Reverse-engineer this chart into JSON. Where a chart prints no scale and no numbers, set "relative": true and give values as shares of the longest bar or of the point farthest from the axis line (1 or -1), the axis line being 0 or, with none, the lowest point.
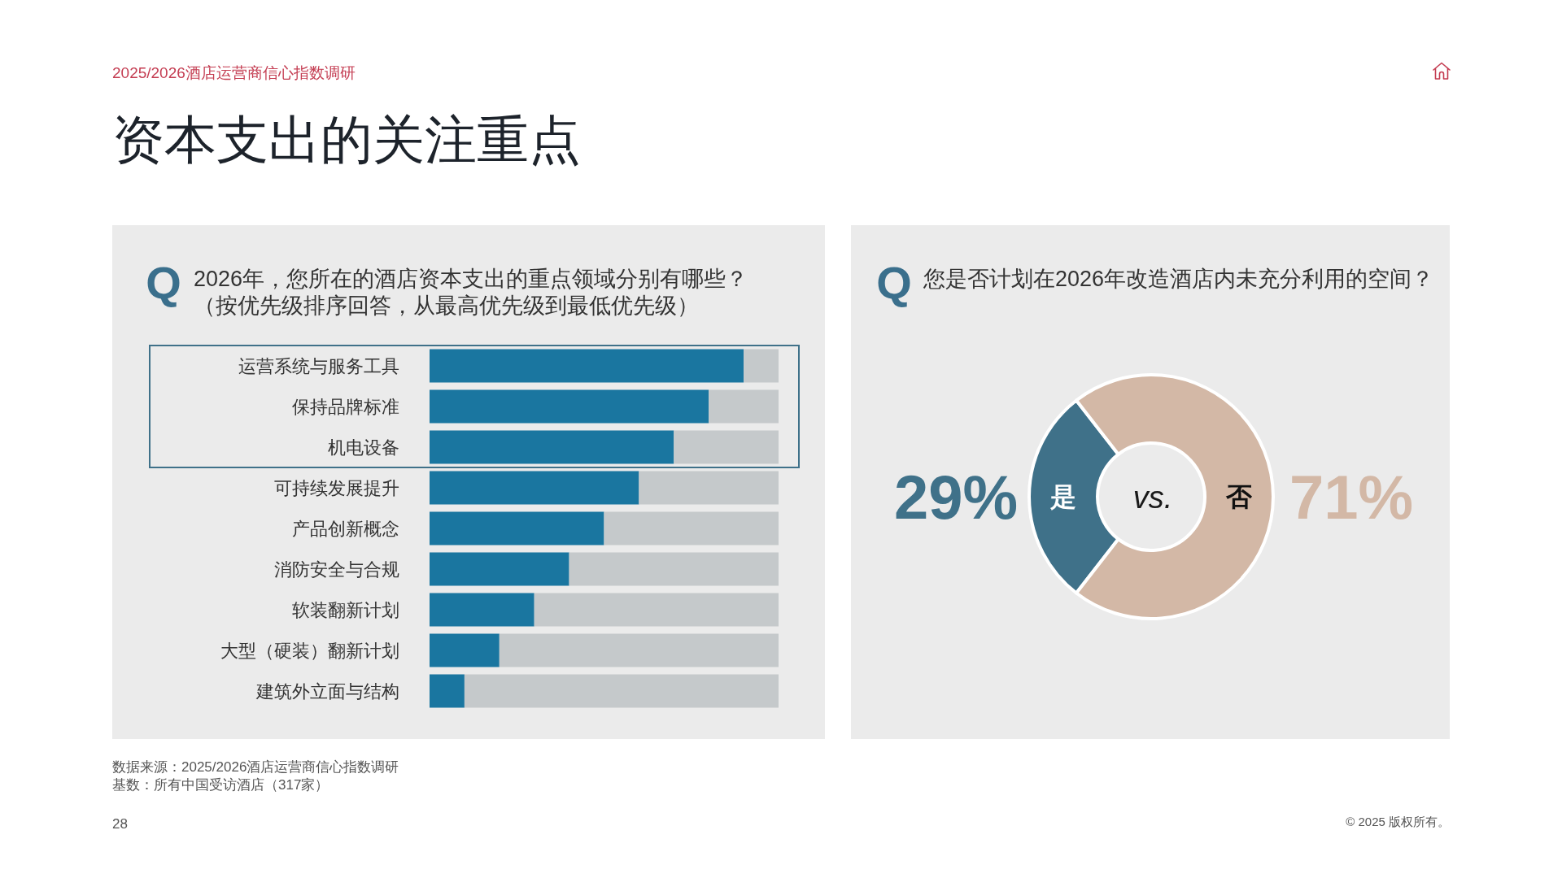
{
  "chart_data": [
    {
      "type": "bar",
      "orientation": "horizontal",
      "stacked": true,
      "relative": true,
      "title": "2026年，您所在的酒店资本支出的重点领域分别有哪些？",
      "subtitle": "（按优先级排序回答，从最高优先级到最低优先级）",
      "categories": [
        "运营系统与服务工具",
        "保持品牌标准",
        "机电设备",
        "可持续发展提升",
        "产品创新概念",
        "消防安全与合规",
        "软装翻新计划",
        "大型（硬装）翻新计划",
        "建筑外立面与结构"
      ],
      "series": [
        {
          "color": "#1a76a0",
          "values": [
            0.9,
            0.8,
            0.7,
            0.6,
            0.5,
            0.4,
            0.3,
            0.2,
            0.1
          ]
        },
        {
          "color": "#c5c9cb",
          "values": [
            0.1,
            0.2,
            0.3,
            0.4,
            0.5,
            0.6,
            0.7,
            0.8,
            0.9
          ]
        }
      ],
      "annotations": [
        "Q",
        "2025/2026酒店运营商信心指数调研",
        "资本支出的关注重点",
        "数据来源：2025/2026酒店运营商信心指数调研",
        "基数：所有中国受访酒店（317家）",
        "28",
        "© 2025 版权所有。"
      ]
    },
    {
      "type": "donut",
      "title": "您是否计划在2026年改造酒店内未充分利用的空间？",
      "categories": [
        "是",
        "否"
      ],
      "values": [
        29,
        71
      ],
      "colors": [
        "#3f7189",
        "#d3b8a6"
      ],
      "value_labels": [
        "29%",
        "71%"
      ],
      "annotations": [
        "Q",
        "vs."
      ]
    }
  ]
}
